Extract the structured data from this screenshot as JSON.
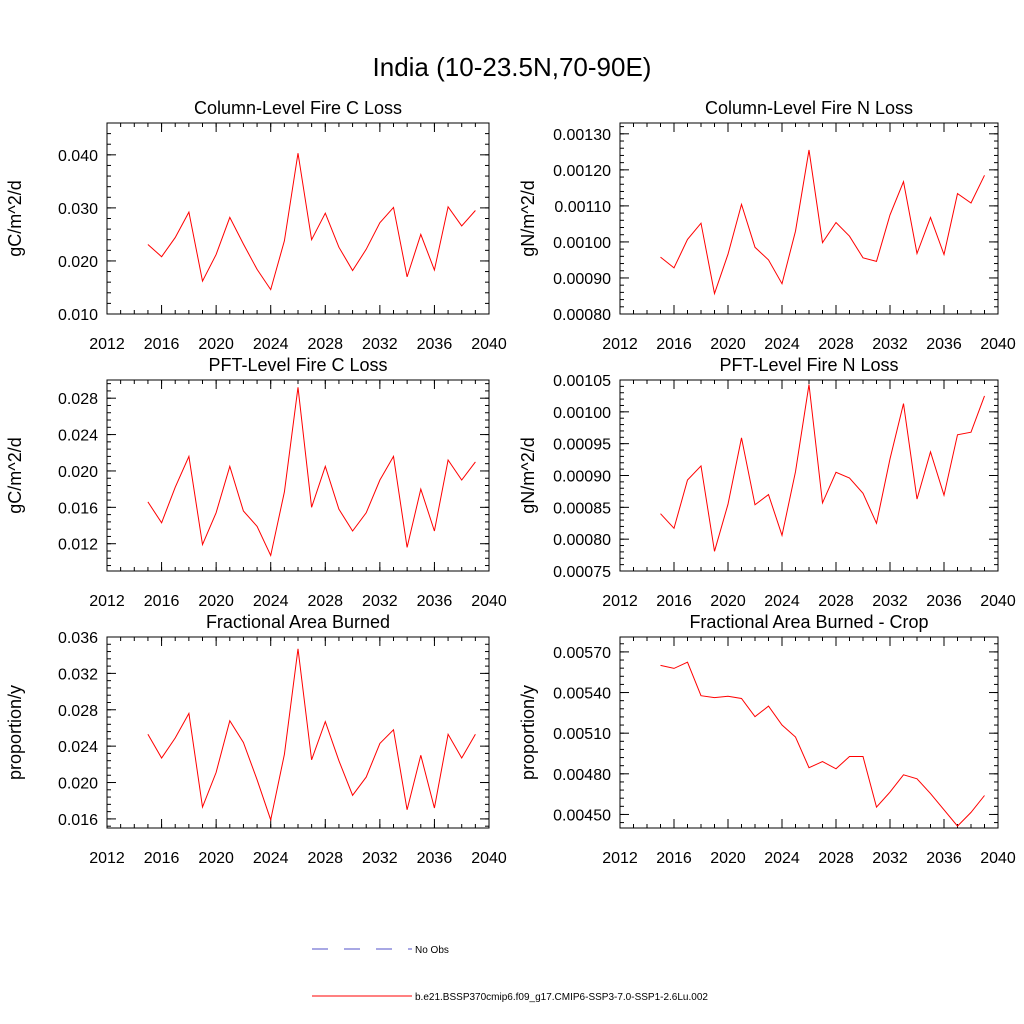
{
  "figure_title": "India (10-23.5N,70-90E)",
  "colors": {
    "model": "#ff0000",
    "obs": "#5050c8",
    "axis": "#000000"
  },
  "legend": {
    "obs_label": "No Obs",
    "model_label": "b.e21.BSSP370cmip6.f09_g17.CMIP6-SSP3-7.0-SSP1-2.6Lu.002"
  },
  "chart_data": [
    {
      "type": "line",
      "title": "Column-Level Fire C Loss",
      "ylabel": "gC/m^2/d",
      "xlim": [
        2012,
        2040
      ],
      "ylim": [
        0.01,
        0.046
      ],
      "xticks": [
        2012,
        2016,
        2020,
        2024,
        2028,
        2032,
        2036,
        2040
      ],
      "yticks": [
        0.01,
        0.02,
        0.03,
        0.04
      ],
      "ytick_labels": [
        "0.010",
        "0.020",
        "0.030",
        "0.040"
      ],
      "x": [
        2015,
        2016,
        2017,
        2018,
        2019,
        2020,
        2021,
        2022,
        2023,
        2024,
        2025,
        2026,
        2027,
        2028,
        2029,
        2030,
        2031,
        2032,
        2033,
        2034,
        2035,
        2036,
        2037,
        2038,
        2039
      ],
      "series": [
        {
          "name": "b.e21.BSSP370cmip6.f09_g17.CMIP6-SSP3-7.0-SSP1-2.6Lu.002",
          "values": [
            0.0231,
            0.0208,
            0.0244,
            0.0292,
            0.0162,
            0.0212,
            0.0282,
            0.0232,
            0.0184,
            0.0146,
            0.0238,
            0.0403,
            0.024,
            0.029,
            0.0226,
            0.0182,
            0.0222,
            0.0272,
            0.0301,
            0.017,
            0.025,
            0.0183,
            0.0302,
            0.0266,
            0.0295
          ]
        }
      ]
    },
    {
      "type": "line",
      "title": "Column-Level Fire N Loss",
      "ylabel": "gN/m^2/d",
      "xlim": [
        2012,
        2040
      ],
      "ylim": [
        0.0008,
        0.00133
      ],
      "xticks": [
        2012,
        2016,
        2020,
        2024,
        2028,
        2032,
        2036,
        2040
      ],
      "yticks": [
        0.0008,
        0.0009,
        0.001,
        0.0011,
        0.0012,
        0.0013
      ],
      "ytick_labels": [
        "0.00080",
        "0.00090",
        "0.00100",
        "0.00110",
        "0.00120",
        "0.00130"
      ],
      "x": [
        2015,
        2016,
        2017,
        2018,
        2019,
        2020,
        2021,
        2022,
        2023,
        2024,
        2025,
        2026,
        2027,
        2028,
        2029,
        2030,
        2031,
        2032,
        2033,
        2034,
        2035,
        2036,
        2037,
        2038,
        2039
      ],
      "series": [
        {
          "name": "b.e21.BSSP370cmip6.f09_g17.CMIP6-SSP3-7.0-SSP1-2.6Lu.002",
          "values": [
            0.000958,
            0.000928,
            0.001007,
            0.001052,
            0.000857,
            0.000966,
            0.001104,
            0.000985,
            0.00095,
            0.000884,
            0.00103,
            0.001255,
            0.000998,
            0.001054,
            0.001016,
            0.000956,
            0.000946,
            0.001075,
            0.001167,
            0.000968,
            0.001068,
            0.000965,
            0.001134,
            0.001108,
            0.001185
          ]
        }
      ]
    },
    {
      "type": "line",
      "title": "PFT-Level Fire C Loss",
      "ylabel": "gC/m^2/d",
      "xlim": [
        2012,
        2040
      ],
      "ylim": [
        0.009,
        0.03
      ],
      "xticks": [
        2012,
        2016,
        2020,
        2024,
        2028,
        2032,
        2036,
        2040
      ],
      "yticks": [
        0.012,
        0.016,
        0.02,
        0.024,
        0.028
      ],
      "ytick_labels": [
        "0.012",
        "0.016",
        "0.020",
        "0.024",
        "0.028"
      ],
      "x": [
        2015,
        2016,
        2017,
        2018,
        2019,
        2020,
        2021,
        2022,
        2023,
        2024,
        2025,
        2026,
        2027,
        2028,
        2029,
        2030,
        2031,
        2032,
        2033,
        2034,
        2035,
        2036,
        2037,
        2038,
        2039
      ],
      "series": [
        {
          "name": "b.e21.BSSP370cmip6.f09_g17.CMIP6-SSP3-7.0-SSP1-2.6Lu.002",
          "values": [
            0.0166,
            0.0143,
            0.0182,
            0.0216,
            0.0119,
            0.0154,
            0.0205,
            0.0156,
            0.0139,
            0.0107,
            0.0177,
            0.0292,
            0.016,
            0.0205,
            0.0158,
            0.0134,
            0.0154,
            0.019,
            0.0216,
            0.0116,
            0.018,
            0.0134,
            0.0212,
            0.019,
            0.021
          ]
        }
      ]
    },
    {
      "type": "line",
      "title": "PFT-Level Fire N Loss",
      "ylabel": "gN/m^2/d",
      "xlim": [
        2012,
        2040
      ],
      "ylim": [
        0.00075,
        0.00105
      ],
      "xticks": [
        2012,
        2016,
        2020,
        2024,
        2028,
        2032,
        2036,
        2040
      ],
      "yticks": [
        0.00075,
        0.0008,
        0.00085,
        0.0009,
        0.00095,
        0.001,
        0.00105
      ],
      "ytick_labels": [
        "0.00075",
        "0.00080",
        "0.00085",
        "0.00090",
        "0.00095",
        "0.00100",
        "0.00105"
      ],
      "x": [
        2015,
        2016,
        2017,
        2018,
        2019,
        2020,
        2021,
        2022,
        2023,
        2024,
        2025,
        2026,
        2027,
        2028,
        2029,
        2030,
        2031,
        2032,
        2033,
        2034,
        2035,
        2036,
        2037,
        2038,
        2039
      ],
      "series": [
        {
          "name": "b.e21.BSSP370cmip6.f09_g17.CMIP6-SSP3-7.0-SSP1-2.6Lu.002",
          "values": [
            0.00084,
            0.000817,
            0.000893,
            0.000915,
            0.000781,
            0.000855,
            0.000959,
            0.000854,
            0.00087,
            0.000806,
            0.000906,
            0.001043,
            0.000857,
            0.000905,
            0.000896,
            0.000872,
            0.000825,
            0.000926,
            0.001013,
            0.000863,
            0.000937,
            0.000869,
            0.000964,
            0.000968,
            0.001025
          ]
        }
      ]
    },
    {
      "type": "line",
      "title": "Fractional Area Burned",
      "ylabel": "proportion/y",
      "xlim": [
        2012,
        2040
      ],
      "ylim": [
        0.015,
        0.036
      ],
      "xticks": [
        2012,
        2016,
        2020,
        2024,
        2028,
        2032,
        2036,
        2040
      ],
      "yticks": [
        0.016,
        0.02,
        0.024,
        0.028,
        0.032,
        0.036
      ],
      "ytick_labels": [
        "0.016",
        "0.020",
        "0.024",
        "0.028",
        "0.032",
        "0.036"
      ],
      "x": [
        2015,
        2016,
        2017,
        2018,
        2019,
        2020,
        2021,
        2022,
        2023,
        2024,
        2025,
        2026,
        2027,
        2028,
        2029,
        2030,
        2031,
        2032,
        2033,
        2034,
        2035,
        2036,
        2037,
        2038,
        2039
      ],
      "series": [
        {
          "name": "b.e21.BSSP370cmip6.f09_g17.CMIP6-SSP3-7.0-SSP1-2.6Lu.002",
          "values": [
            0.0253,
            0.0227,
            0.0249,
            0.0276,
            0.0173,
            0.0211,
            0.0268,
            0.0244,
            0.0203,
            0.0159,
            0.0231,
            0.0347,
            0.0225,
            0.0267,
            0.0224,
            0.0186,
            0.0206,
            0.0243,
            0.0258,
            0.017,
            0.023,
            0.0172,
            0.0253,
            0.0227,
            0.0253
          ]
        }
      ]
    },
    {
      "type": "line",
      "title": "Fractional Area Burned - Crop",
      "ylabel": "proportion/y",
      "xlim": [
        2012,
        2040
      ],
      "ylim": [
        0.0044,
        0.00581
      ],
      "xticks": [
        2012,
        2016,
        2020,
        2024,
        2028,
        2032,
        2036,
        2040
      ],
      "yticks": [
        0.0045,
        0.0048,
        0.0051,
        0.0054,
        0.0057
      ],
      "ytick_labels": [
        "0.00450",
        "0.00480",
        "0.00510",
        "0.00540",
        "0.00570"
      ],
      "x": [
        2015,
        2016,
        2017,
        2018,
        2019,
        2020,
        2021,
        2022,
        2023,
        2024,
        2025,
        2026,
        2027,
        2028,
        2029,
        2030,
        2031,
        2032,
        2033,
        2034,
        2035,
        2036,
        2037,
        2038,
        2039
      ],
      "series": [
        {
          "name": "b.e21.BSSP370cmip6.f09_g17.CMIP6-SSP3-7.0-SSP1-2.6Lu.002",
          "values": [
            0.0056,
            0.005578,
            0.005624,
            0.005377,
            0.005363,
            0.005373,
            0.005356,
            0.005222,
            0.0053,
            0.00516,
            0.005072,
            0.004845,
            0.00489,
            0.004837,
            0.004928,
            0.004928,
            0.004554,
            0.004665,
            0.004793,
            0.004763,
            0.004654,
            0.004534,
            0.004414,
            0.004515,
            0.00464
          ]
        }
      ]
    }
  ]
}
